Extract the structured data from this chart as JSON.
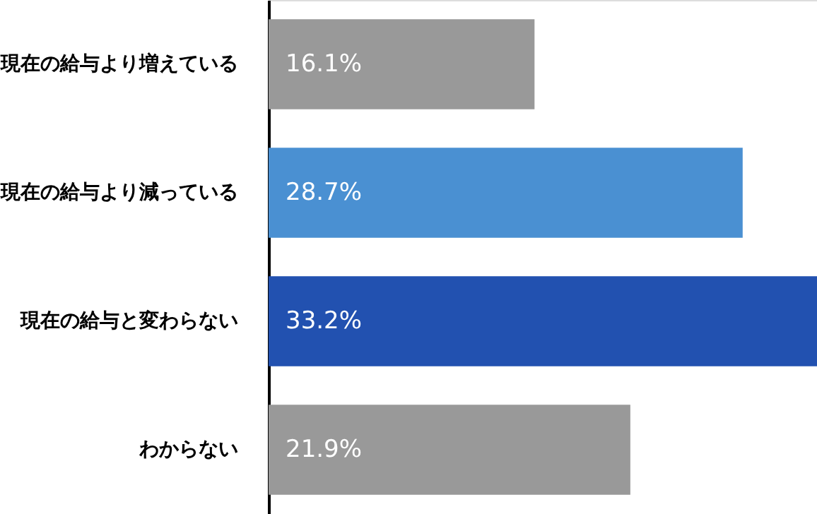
{
  "chart_data": {
    "type": "bar",
    "orientation": "horizontal",
    "categories": [
      "現在の給与より増えている",
      "現在の給与より減っている",
      "現在の給与と変わらない",
      "わからない"
    ],
    "values": [
      16.1,
      28.7,
      33.2,
      21.9
    ],
    "colors": [
      "#999999",
      "#4a90d2",
      "#2251b0",
      "#999999"
    ],
    "value_labels": [
      "16.1%",
      "28.7%",
      "33.2%",
      "21.9%"
    ],
    "xlim": [
      0,
      33.2
    ],
    "tick_labels": "y",
    "grid": false
  }
}
